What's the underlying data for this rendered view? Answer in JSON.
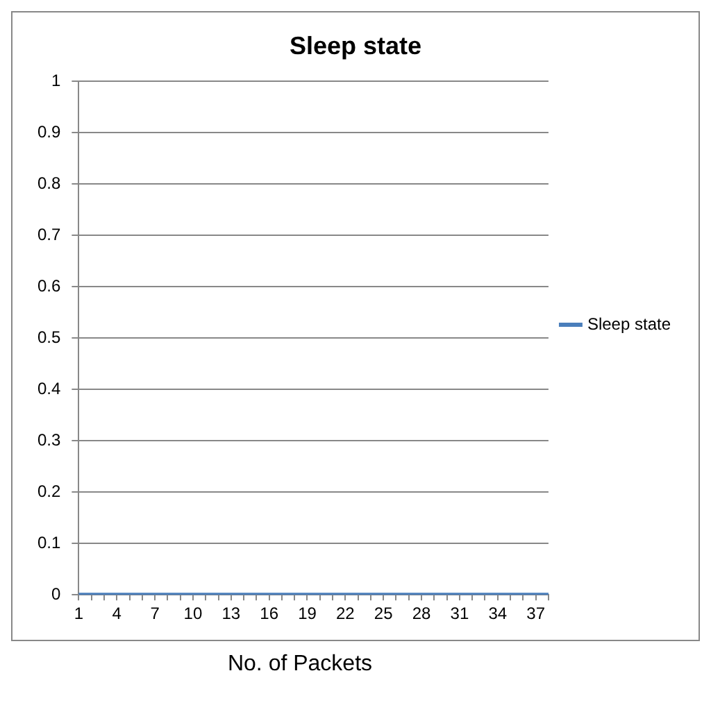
{
  "chart_data": {
    "type": "line",
    "title": "Sleep state",
    "xlabel": "No. of Packets",
    "categories": [
      "1",
      null,
      null,
      "4",
      null,
      null,
      "7",
      null,
      null,
      "10",
      null,
      null,
      "13",
      null,
      null,
      "16",
      null,
      null,
      "19",
      null,
      null,
      "22",
      null,
      null,
      "25",
      null,
      null,
      "28",
      null,
      null,
      "31",
      null,
      null,
      "34",
      null,
      null,
      "37",
      null
    ],
    "series": [
      {
        "name": "Sleep state",
        "color": "#4a7ebb",
        "values": [
          0,
          0,
          0,
          0,
          0,
          0,
          0,
          0,
          0,
          0,
          0,
          0,
          0,
          0,
          0,
          0,
          0,
          0,
          0,
          0,
          0,
          0,
          0,
          0,
          0,
          0,
          0,
          0,
          0,
          0,
          0,
          0,
          0,
          0,
          0,
          0,
          0,
          0
        ]
      }
    ],
    "ylim": [
      0,
      1
    ],
    "yticks": [
      0,
      0.1,
      0.2,
      0.3,
      0.4,
      0.5,
      0.6,
      0.7,
      0.8,
      0.9,
      1
    ],
    "grid": "y",
    "legend": "right",
    "marker": "none"
  }
}
